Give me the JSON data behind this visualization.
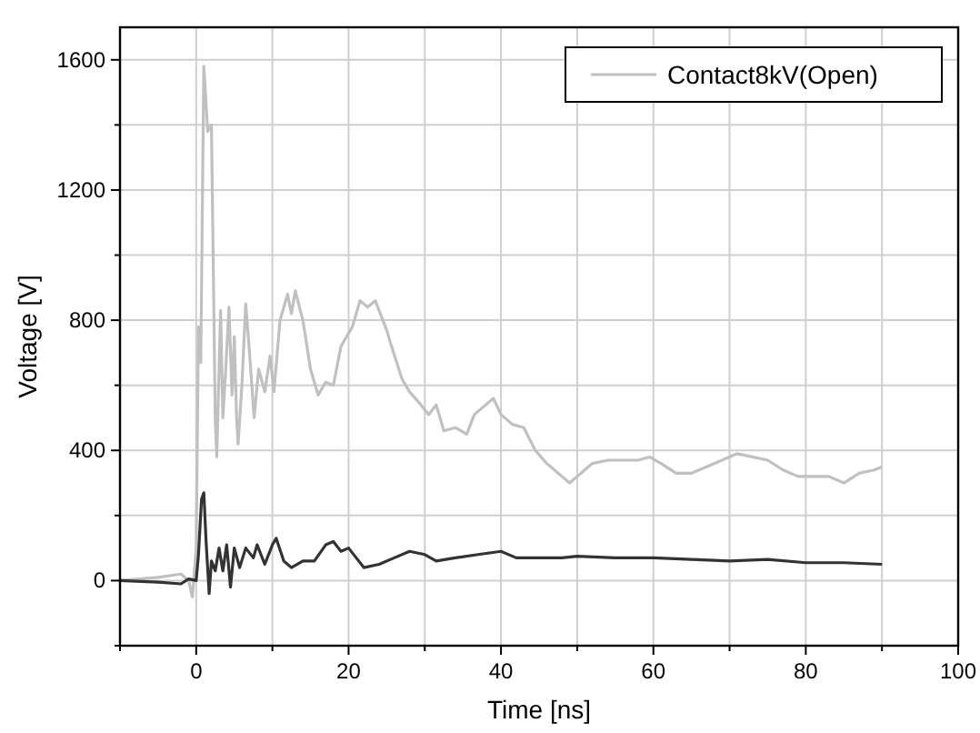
{
  "chart_data": {
    "type": "line",
    "xlabel": "Time [ns]",
    "ylabel": "Voltage [V]",
    "xlim": [
      -10,
      100
    ],
    "xticks": [
      {
        "value": -10,
        "label": null
      },
      0,
      {
        "value": 10,
        "label": null
      },
      20,
      {
        "value": 30,
        "label": null
      },
      40,
      {
        "value": 50,
        "label": null
      },
      60,
      {
        "value": 70,
        "label": null
      },
      80,
      {
        "value": 90,
        "label": null
      },
      100
    ],
    "ylim": [
      -200,
      1700
    ],
    "yticks": [
      {
        "value": -200,
        "label": null
      },
      0,
      {
        "value": 200,
        "label": null
      },
      400,
      {
        "value": 600,
        "label": null
      },
      800,
      {
        "value": 1000,
        "label": null
      },
      1200,
      {
        "value": 1400,
        "label": null
      },
      1600
    ],
    "grid": true,
    "legend": "top right",
    "line_style": "solid",
    "marker": "none",
    "series": [
      {
        "name": "Contact8kV(Open)",
        "color": "#c0c0c0",
        "x": [
          -10,
          -5,
          -2,
          -1,
          -0.5,
          0,
          0.3,
          0.6,
          1,
          1.5,
          2,
          2.5,
          2.7,
          3.2,
          3.5,
          3.9,
          4.3,
          4.7,
          5,
          5.3,
          5.5,
          6,
          6.5,
          7,
          7.6,
          8.2,
          9,
          9.7,
          10.2,
          11,
          12,
          12.5,
          13,
          14,
          15,
          16,
          17,
          18,
          19,
          20.5,
          21.5,
          22.5,
          23.5,
          25,
          25.5,
          27,
          28,
          29.5,
          30.5,
          31.5,
          32.5,
          34,
          35.5,
          36.5,
          38,
          39,
          40,
          41.5,
          43,
          44.5,
          46,
          48,
          49,
          50,
          52,
          54,
          56,
          58,
          59.5,
          61,
          63,
          65,
          67,
          69,
          71,
          73,
          75,
          77,
          79,
          81,
          83,
          85,
          87,
          89,
          90
        ],
        "values": [
          0,
          10,
          20,
          0,
          -50,
          100,
          780,
          670,
          1580,
          1380,
          1400,
          500,
          380,
          830,
          500,
          660,
          840,
          570,
          750,
          500,
          420,
          600,
          850,
          700,
          500,
          650,
          580,
          690,
          580,
          800,
          880,
          820,
          890,
          800,
          650,
          570,
          610,
          600,
          720,
          780,
          860,
          840,
          860,
          770,
          730,
          620,
          580,
          540,
          510,
          540,
          460,
          470,
          450,
          510,
          540,
          560,
          510,
          480,
          470,
          400,
          360,
          320,
          300,
          320,
          360,
          370,
          370,
          370,
          380,
          360,
          330,
          330,
          350,
          370,
          390,
          380,
          370,
          340,
          320,
          320,
          320,
          300,
          330,
          340,
          350
        ]
      },
      {
        "color": "#333333",
        "x": [
          -10,
          -5,
          -2,
          -1,
          0,
          0.3,
          0.7,
          1,
          1.3,
          1.7,
          2,
          2.5,
          3,
          3.5,
          4,
          4.5,
          5,
          5.7,
          6.5,
          7.5,
          8,
          9,
          10,
          10.5,
          11.5,
          12.5,
          14,
          15.5,
          17,
          18,
          19,
          20,
          21,
          22,
          24,
          26,
          28,
          30,
          31.5,
          34,
          37,
          40,
          42,
          45,
          48,
          50,
          55,
          60,
          65,
          70,
          75,
          80,
          85,
          90
        ],
        "values": [
          0,
          -5,
          -10,
          5,
          0,
          80,
          250,
          270,
          120,
          -40,
          60,
          30,
          100,
          30,
          110,
          -20,
          100,
          40,
          100,
          70,
          110,
          50,
          110,
          130,
          60,
          40,
          60,
          60,
          110,
          120,
          90,
          100,
          70,
          40,
          50,
          70,
          90,
          80,
          60,
          70,
          80,
          90,
          70,
          70,
          70,
          75,
          70,
          70,
          65,
          60,
          65,
          55,
          55,
          50
        ]
      }
    ]
  }
}
